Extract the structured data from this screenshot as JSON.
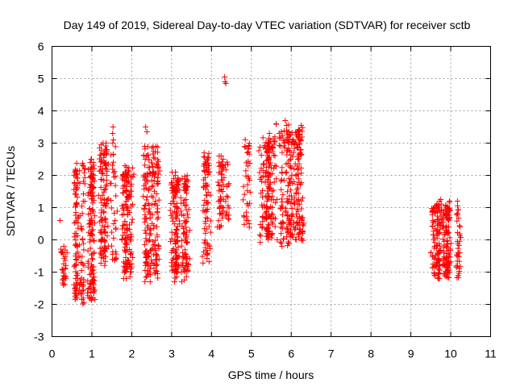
{
  "chart_data": {
    "type": "scatter",
    "title": "Day 149 of 2019, Sidereal Day-to-day VTEC variation (SDTVAR) for receiver sctb",
    "xlabel": "GPS time / hours",
    "ylabel": "SDTVAR / TECUs",
    "xlim": [
      0,
      11
    ],
    "ylim": [
      -3,
      6
    ],
    "x_ticks": [
      "0",
      "1",
      "2",
      "3",
      "4",
      "5",
      "6",
      "7",
      "8",
      "9",
      "10",
      "11"
    ],
    "y_ticks": [
      "-3",
      "-2",
      "-1",
      "0",
      "1",
      "2",
      "3",
      "4",
      "5",
      "6"
    ],
    "grid": true,
    "marker": "+",
    "color": "#ff0000",
    "clusters": [
      {
        "x0": 0.18,
        "x1": 0.32,
        "ymin": -1.4,
        "ymax": -0.2,
        "n": 30
      },
      {
        "x0": 0.48,
        "x1": 1.05,
        "ymin": -2.0,
        "ymax": 2.5,
        "n": 260
      },
      {
        "x0": 1.18,
        "x1": 1.65,
        "ymin": -0.8,
        "ymax": 3.0,
        "n": 160
      },
      {
        "x0": 1.75,
        "x1": 2.05,
        "ymin": -1.2,
        "ymax": 2.3,
        "n": 140
      },
      {
        "x0": 2.3,
        "x1": 2.8,
        "ymin": -1.3,
        "ymax": 2.9,
        "n": 200
      },
      {
        "x0": 2.95,
        "x1": 3.4,
        "ymin": -1.3,
        "ymax": 2.1,
        "n": 220
      },
      {
        "x0": 3.78,
        "x1": 3.95,
        "ymin": -0.8,
        "ymax": 2.8,
        "n": 80
      },
      {
        "x0": 4.15,
        "x1": 4.4,
        "ymin": 0.4,
        "ymax": 2.6,
        "n": 70
      },
      {
        "x0": 4.75,
        "x1": 4.95,
        "ymin": 0.2,
        "ymax": 3.2,
        "n": 40
      },
      {
        "x0": 5.05,
        "x1": 5.55,
        "ymin": -0.1,
        "ymax": 3.3,
        "n": 150
      },
      {
        "x0": 5.55,
        "x1": 6.3,
        "ymin": -0.2,
        "ymax": 3.6,
        "n": 260
      },
      {
        "x0": 9.5,
        "x1": 10.2,
        "ymin": -1.2,
        "ymax": 1.2,
        "n": 260
      }
    ],
    "points": [
      [
        0.2,
        0.6
      ],
      [
        0.62,
        -1.1
      ],
      [
        1.28,
        3.0
      ],
      [
        1.53,
        3.5
      ],
      [
        1.52,
        3.3
      ],
      [
        1.54,
        3.1
      ],
      [
        2.35,
        3.5
      ],
      [
        2.38,
        3.35
      ],
      [
        4.33,
        5.05
      ],
      [
        4.34,
        4.9
      ],
      [
        4.36,
        4.85
      ],
      [
        5.85,
        3.7
      ],
      [
        5.88,
        3.55
      ],
      [
        5.75,
        3.35
      ],
      [
        6.25,
        3.55
      ],
      [
        6.2,
        3.4
      ],
      [
        0.8,
        -1.95
      ],
      [
        0.75,
        -1.85
      ],
      [
        9.75,
        1.25
      ],
      [
        9.6,
        -1.1
      ]
    ]
  }
}
